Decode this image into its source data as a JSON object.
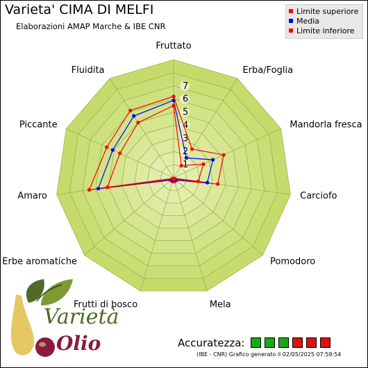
{
  "header": {
    "title": "Varieta' CIMA DI MELFI",
    "subtitle": "Elaborazioni AMAP Marche & IBE CNR"
  },
  "legend": {
    "items": [
      {
        "label": "Limite superiore",
        "color": "#ff0000"
      },
      {
        "label": "Media",
        "color": "#0000ff"
      },
      {
        "label": "Limite inferiore",
        "color": "#ff0000"
      }
    ]
  },
  "chart_data": {
    "type": "radar",
    "axes": [
      "Fruttato",
      "Erba/Foglia",
      "Mandorla fresca",
      "Carciofo",
      "Pomodoro",
      "Mela",
      "Frutti di bosco",
      "Erbe aromatiche",
      "Amaro",
      "Piccante",
      "Fluidita"
    ],
    "scale_labels": [
      "1",
      "2",
      "3",
      "4",
      "5",
      "6",
      "7"
    ],
    "rmax": 9,
    "series": [
      {
        "name": "Limite superiore",
        "color": "#ff0000",
        "values": [
          6.2,
          2.6,
          4.2,
          3.4,
          0.3,
          0.3,
          0.3,
          0.3,
          6.5,
          5.6,
          6.1
        ]
      },
      {
        "name": "Media",
        "color": "#0000ff",
        "values": [
          5.9,
          1.8,
          3.3,
          2.6,
          0.2,
          0.2,
          0.2,
          0.2,
          5.8,
          5.1,
          5.6
        ]
      },
      {
        "name": "Limite inferiore",
        "color": "#ff0000",
        "values": [
          5.5,
          1.1,
          2.5,
          1.9,
          0.1,
          0.1,
          0.1,
          0.1,
          5.1,
          4.5,
          5.0
        ]
      }
    ],
    "colors": {
      "fill_outer": "#c5dc6c",
      "fill_inner": "#e9f3bd",
      "grid": "#9db24c"
    }
  },
  "accuracy": {
    "label": "Accuratezza:",
    "boxes": [
      "#18a818",
      "#18a818",
      "#18a818",
      "#dd1111",
      "#dd1111",
      "#dd1111"
    ]
  },
  "footer": {
    "text": "(IBE - CNR) Grafico generato il 02/05/2025 07:59:54"
  },
  "logo": {
    "text_top": "Varietà",
    "text_bottom": "Olio"
  }
}
